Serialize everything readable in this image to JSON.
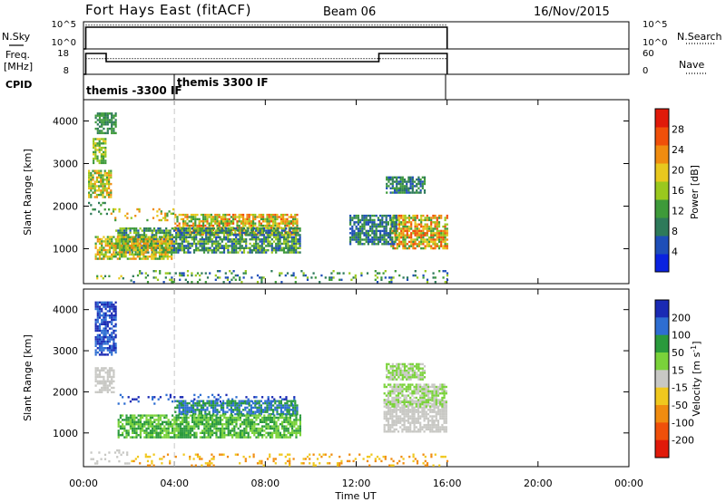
{
  "header": {
    "station": "Fort Hays East (fitACF)",
    "beam": "Beam 06",
    "date": "16/Nov/2015"
  },
  "strip_labels": {
    "nsky": "N.Sky",
    "freq_line1": "Freq.",
    "freq_line2": "[MHz]",
    "cpid": "CPID",
    "nsearch": "N.Search",
    "nave": "Nave"
  },
  "cpid_labels": [
    "themis -3300 IF",
    "themis 3300 IF"
  ],
  "x_axis": {
    "label": "Time UT",
    "ticks": [
      "00:00",
      "04:00",
      "08:00",
      "12:00",
      "16:00",
      "20:00",
      "00:00"
    ],
    "range_hours": [
      0,
      24
    ]
  },
  "colors": {
    "power": [
      "#0a22e0",
      "#1e4eb8",
      "#2e7a5a",
      "#3e9a3a",
      "#9ac81e",
      "#e8c81e",
      "#f08c10",
      "#f0500a",
      "#e01a0a"
    ],
    "velocity": [
      "#1a2ab4",
      "#2e6ed2",
      "#2a9a3c",
      "#7ad23a",
      "#c8c8c4",
      "#f0c81e",
      "#f08c10",
      "#f0500a",
      "#e01a0a"
    ]
  },
  "chart_data": [
    {
      "type": "line",
      "name": "noise-strip",
      "y_ticks_left": [
        "10^5",
        "10^0"
      ],
      "y_ticks_right": [
        "10^5",
        "10^0"
      ],
      "x_range_hours": [
        0,
        24
      ],
      "series": [
        {
          "x": [
            0.0,
            0.1,
            0.1,
            16.0,
            16.0
          ],
          "y": [
            0.0,
            0.0,
            0.8,
            0.8,
            0.0
          ]
        },
        {
          "x": [
            0.1,
            16.0
          ],
          "y": [
            0.88,
            0.88
          ]
        }
      ]
    },
    {
      "type": "line",
      "name": "freq-nave-strip",
      "y_ticks_left": [
        "18",
        "8"
      ],
      "y_ticks_right": [
        "60",
        "0"
      ],
      "x_range_hours": [
        0,
        24
      ],
      "series": [
        {
          "x": [
            0.0,
            0.1,
            0.1,
            1.0,
            1.0,
            13.0,
            13.0,
            16.0,
            16.0
          ],
          "y": [
            0.0,
            0.0,
            0.82,
            0.82,
            0.5,
            0.5,
            0.82,
            0.82,
            0.0
          ]
        },
        {
          "x": [
            0.1,
            16.0
          ],
          "y": [
            0.62,
            0.62
          ]
        }
      ]
    },
    {
      "type": "heatmap",
      "name": "power",
      "ylabel": "Slant Range [km]",
      "y_ticks": [
        1000,
        2000,
        3000,
        4000
      ],
      "ylim": [
        180,
        4500
      ],
      "xlim_hours": [
        0,
        24
      ],
      "colorbar": {
        "label": "Power [dB]",
        "ticks": [
          4,
          8,
          12,
          16,
          20,
          24,
          28
        ],
        "range": [
          0,
          32
        ]
      },
      "regions": [
        {
          "t": [
            1.1,
            4.0
          ],
          "r": [
            1650,
            1950
          ],
          "v": [
            14,
            24
          ]
        },
        {
          "t": [
            4.0,
            9.4
          ],
          "r": [
            1350,
            1820
          ],
          "v": [
            14,
            28
          ]
        },
        {
          "t": [
            1.4,
            9.5
          ],
          "r": [
            900,
            1500
          ],
          "v": [
            6,
            18
          ]
        },
        {
          "t": [
            0.5,
            3.9
          ],
          "r": [
            750,
            1300
          ],
          "v": [
            12,
            24
          ]
        },
        {
          "t": [
            0.2,
            1.2
          ],
          "r": [
            2200,
            2850
          ],
          "v": [
            14,
            24
          ]
        },
        {
          "t": [
            0.4,
            1.0
          ],
          "r": [
            3000,
            3600
          ],
          "v": [
            14,
            22
          ]
        },
        {
          "t": [
            0.2,
            1.1
          ],
          "r": [
            1800,
            2100
          ],
          "v": [
            8,
            14
          ]
        },
        {
          "t": [
            0.5,
            1.4
          ],
          "r": [
            3700,
            4200
          ],
          "v": [
            8,
            14
          ]
        },
        {
          "t": [
            0.3,
            2.2
          ],
          "r": [
            230,
            380
          ],
          "v": [
            8,
            20
          ]
        },
        {
          "t": [
            13.5,
            16.0
          ],
          "r": [
            1000,
            1800
          ],
          "v": [
            14,
            28
          ]
        },
        {
          "t": [
            13.3,
            15.0
          ],
          "r": [
            2300,
            2700
          ],
          "v": [
            6,
            12
          ]
        },
        {
          "t": [
            11.7,
            13.8
          ],
          "r": [
            1100,
            1800
          ],
          "v": [
            6,
            12
          ]
        },
        {
          "t": [
            2.0,
            16.0
          ],
          "r": [
            200,
            500
          ],
          "v": [
            4,
            16
          ]
        }
      ]
    },
    {
      "type": "heatmap",
      "name": "velocity",
      "ylabel": "Slant Range [km]",
      "y_ticks": [
        1000,
        2000,
        3000,
        4000
      ],
      "ylim": [
        180,
        4500
      ],
      "xlim_hours": [
        0,
        24
      ],
      "colorbar": {
        "label": "Velocity [m s^-1]",
        "ticks": [
          "200",
          "100",
          "50",
          "15",
          "-15",
          "-50",
          "-100",
          "-200"
        ]
      },
      "regions": [
        {
          "t": [
            1.5,
            9.4
          ],
          "r": [
            1700,
            1950
          ],
          "v": [
            0,
            1
          ]
        },
        {
          "t": [
            4.0,
            9.4
          ],
          "r": [
            1450,
            1800
          ],
          "v": [
            1,
            2
          ]
        },
        {
          "t": [
            1.5,
            9.5
          ],
          "r": [
            900,
            1450
          ],
          "v": [
            2,
            3
          ]
        },
        {
          "t": [
            0.5,
            1.3
          ],
          "r": [
            2000,
            2600
          ],
          "v": [
            4,
            4
          ]
        },
        {
          "t": [
            0.5,
            1.4
          ],
          "r": [
            2900,
            4200
          ],
          "v": [
            0,
            1
          ]
        },
        {
          "t": [
            13.2,
            16.0
          ],
          "r": [
            1050,
            1800
          ],
          "v": [
            4,
            4
          ]
        },
        {
          "t": [
            13.2,
            16.0
          ],
          "r": [
            1650,
            2200
          ],
          "v": [
            3,
            4
          ]
        },
        {
          "t": [
            13.3,
            15.0
          ],
          "r": [
            2300,
            2700
          ],
          "v": [
            3,
            4
          ]
        },
        {
          "t": [
            2.0,
            16.0
          ],
          "r": [
            200,
            500
          ],
          "v": [
            5,
            6
          ]
        },
        {
          "t": [
            0.3,
            2.0
          ],
          "r": [
            230,
            600
          ],
          "v": [
            4,
            4
          ]
        }
      ]
    }
  ]
}
